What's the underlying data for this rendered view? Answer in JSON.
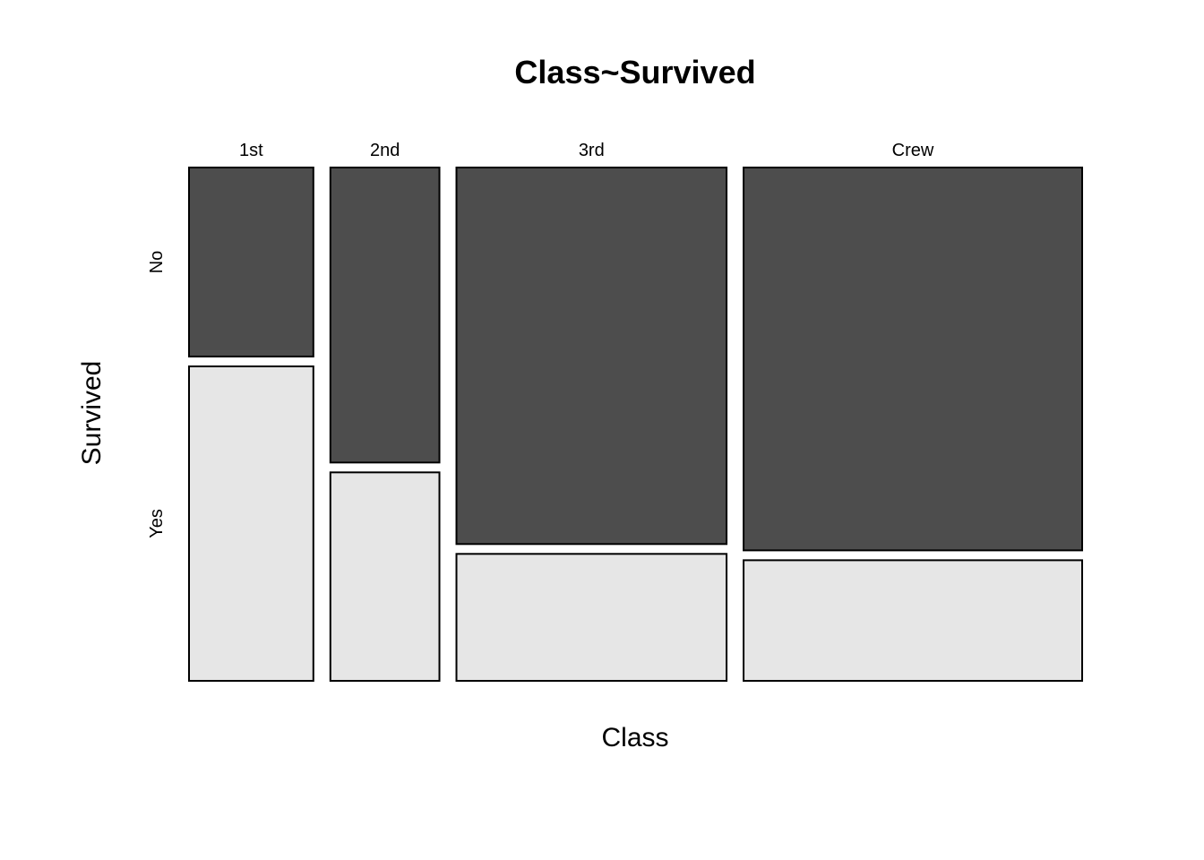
{
  "chart_data": {
    "type": "mosaic",
    "title": "Class~Survived",
    "xlabel": "Class",
    "ylabel": "Survived",
    "categories": [
      "1st",
      "2nd",
      "3rd",
      "Crew"
    ],
    "levels": [
      "No",
      "Yes"
    ],
    "counts": {
      "No": [
        122,
        167,
        528,
        673
      ],
      "Yes": [
        203,
        118,
        178,
        212
      ]
    },
    "grid": false,
    "legend": "none"
  },
  "colors": {
    "No": "#4d4d4d",
    "Yes": "#e6e6e6",
    "border": "#000000",
    "background": "#ffffff"
  }
}
